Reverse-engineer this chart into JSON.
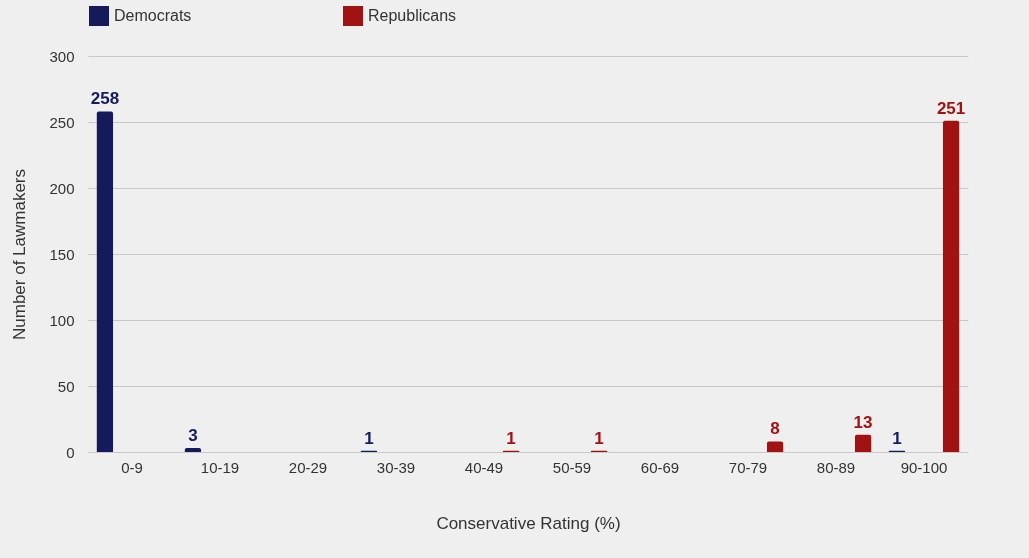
{
  "chart_data": {
    "type": "bar",
    "xlabel": "Conservative Rating (%)",
    "ylabel": "Number of Lawmakers",
    "categories": [
      "0-9",
      "10-19",
      "20-29",
      "30-39",
      "40-49",
      "50-59",
      "60-69",
      "70-79",
      "80-89",
      "90-100"
    ],
    "series": [
      {
        "name": "Democrats",
        "color": "#141a5a",
        "values": [
          258,
          3,
          null,
          1,
          null,
          null,
          null,
          null,
          null,
          1
        ]
      },
      {
        "name": "Republicans",
        "color": "#a11212",
        "values": [
          null,
          null,
          null,
          null,
          1,
          1,
          null,
          8,
          13,
          251
        ]
      }
    ],
    "ylim": [
      0,
      300
    ],
    "yticks": [
      0,
      50,
      100,
      150,
      200,
      250,
      300
    ],
    "grid": "y",
    "legend": "top",
    "data_labels": true
  }
}
